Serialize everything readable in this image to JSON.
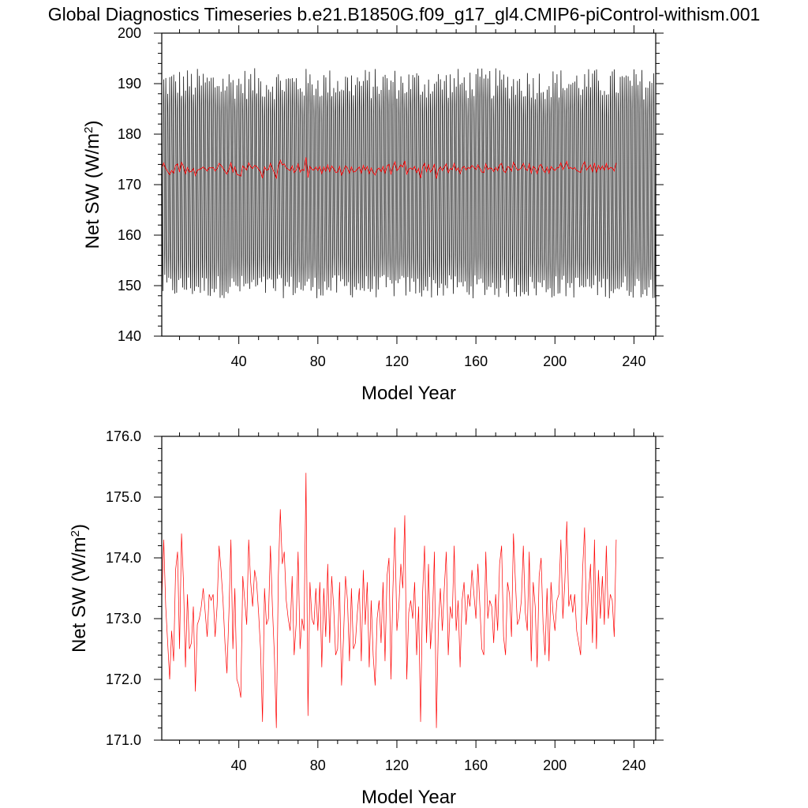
{
  "title": "Global Diagnostics Timeseries b.e21.B1850G.f09_g17_gl4.CMIP6-piControl-withism.001",
  "colors": {
    "monthly": "#000000",
    "annual": "#ff0000"
  },
  "chart_data": [
    {
      "type": "line",
      "xlabel": "Model Year",
      "ylabel_main": "Net SW (W/m",
      "ylabel_sup": "2",
      "ylabel_close": ")",
      "xlim": [
        1,
        251
      ],
      "ylim": [
        140,
        200
      ],
      "xticks": [
        40,
        80,
        120,
        160,
        200,
        240
      ],
      "xtick_labels": [
        "40",
        "80",
        "120",
        "160",
        "200",
        "240"
      ],
      "yticks": [
        140,
        150,
        160,
        170,
        180,
        190,
        200
      ],
      "ytick_labels": [
        "140",
        "150",
        "160",
        "170",
        "180",
        "190",
        "200"
      ],
      "grid": false,
      "series": [
        {
          "kind": "monthly_seasonal",
          "color": "#000000",
          "years": [
            1,
            250
          ],
          "seasonal_max_range": [
            187.5,
            193.8
          ],
          "seasonal_min_range": [
            146.8,
            151.5
          ]
        },
        {
          "kind": "annual_mean",
          "color": "#ff0000",
          "ref": "annual_values"
        }
      ]
    },
    {
      "type": "line",
      "xlabel": "Model Year",
      "ylabel_main": "Net SW (W/m",
      "ylabel_sup": "2",
      "ylabel_close": ")",
      "xlim": [
        1,
        251
      ],
      "ylim": [
        171.0,
        176.0
      ],
      "xticks": [
        40,
        80,
        120,
        160,
        200,
        240
      ],
      "xtick_labels": [
        "40",
        "80",
        "120",
        "160",
        "200",
        "240"
      ],
      "yticks": [
        171.0,
        172.0,
        173.0,
        174.0,
        175.0,
        176.0
      ],
      "ytick_labels": [
        "171.0",
        "172.0",
        "173.0",
        "174.0",
        "175.0",
        "176.0"
      ],
      "grid": false,
      "series": [
        {
          "kind": "annual_mean",
          "color": "#ff0000",
          "ref": "annual_values"
        }
      ]
    }
  ],
  "annual_values": {
    "start_year": 1,
    "values": [
      173.3,
      174.3,
      173.2,
      172.6,
      172.0,
      172.8,
      172.3,
      173.8,
      174.1,
      172.5,
      174.4,
      173.6,
      172.2,
      173.4,
      172.5,
      172.6,
      173.2,
      171.8,
      172.9,
      173.0,
      173.2,
      173.5,
      173.1,
      172.7,
      173.4,
      173.3,
      173.4,
      172.7,
      173.2,
      174.2,
      173.8,
      173.3,
      172.6,
      172.1,
      173.1,
      174.3,
      172.5,
      173.5,
      172.0,
      171.9,
      171.7,
      173.7,
      173.3,
      172.9,
      174.3,
      173.6,
      173.2,
      173.8,
      173.6,
      173.1,
      172.5,
      171.3,
      173.5,
      172.9,
      173.0,
      174.2,
      173.2,
      172.4,
      171.2,
      173.7,
      174.8,
      173.9,
      174.1,
      173.3,
      173.0,
      172.8,
      173.7,
      172.4,
      172.9,
      174.1,
      172.5,
      173.0,
      172.8,
      175.4,
      171.4,
      173.6,
      173.0,
      172.9,
      173.5,
      172.8,
      173.6,
      172.2,
      173.5,
      172.7,
      173.9,
      172.6,
      173.7,
      173.2,
      172.4,
      172.5,
      173.6,
      171.9,
      172.7,
      173.7,
      173.3,
      172.3,
      173.5,
      172.5,
      172.6,
      173.1,
      173.5,
      172.3,
      173.8,
      172.9,
      173.6,
      172.2,
      173.3,
      172.4,
      171.9,
      173.0,
      173.3,
      172.6,
      173.6,
      172.3,
      173.7,
      174.0,
      172.0,
      173.5,
      174.5,
      172.8,
      173.2,
      173.9,
      173.5,
      174.7,
      172.0,
      173.1,
      173.3,
      173.0,
      173.6,
      172.4,
      173.2,
      171.3,
      173.4,
      174.2,
      172.6,
      173.9,
      172.5,
      173.0,
      174.1,
      171.2,
      172.9,
      173.5,
      172.8,
      173.5,
      174.1,
      172.4,
      173.2,
      173.0,
      174.2,
      172.8,
      173.3,
      172.2,
      173.3,
      173.6,
      172.9,
      173.4,
      173.2,
      173.8,
      173.4,
      173.0,
      173.9,
      173.2,
      172.5,
      172.4,
      174.1,
      173.0,
      173.3,
      173.2,
      172.6,
      173.4,
      172.8,
      173.9,
      174.2,
      172.7,
      172.4,
      173.6,
      173.4,
      172.7,
      174.4,
      173.6,
      172.9,
      173.0,
      173.3,
      174.2,
      173.1,
      172.8,
      174.1,
      172.3,
      173.6,
      173.2,
      172.2,
      173.7,
      174.0,
      172.9,
      172.4,
      173.5,
      172.3,
      173.6,
      173.1,
      172.8,
      173.3,
      173.4,
      174.3,
      173.0,
      173.6,
      174.6,
      173.2,
      173.4,
      173.1,
      173.4,
      172.8,
      172.6,
      172.4,
      173.8,
      174.5,
      172.9,
      173.4,
      173.9,
      172.6,
      174.3,
      172.5,
      173.8,
      173.0,
      173.7,
      172.9,
      174.2,
      173.0,
      173.4,
      173.3,
      172.7,
      174.3
    ]
  }
}
